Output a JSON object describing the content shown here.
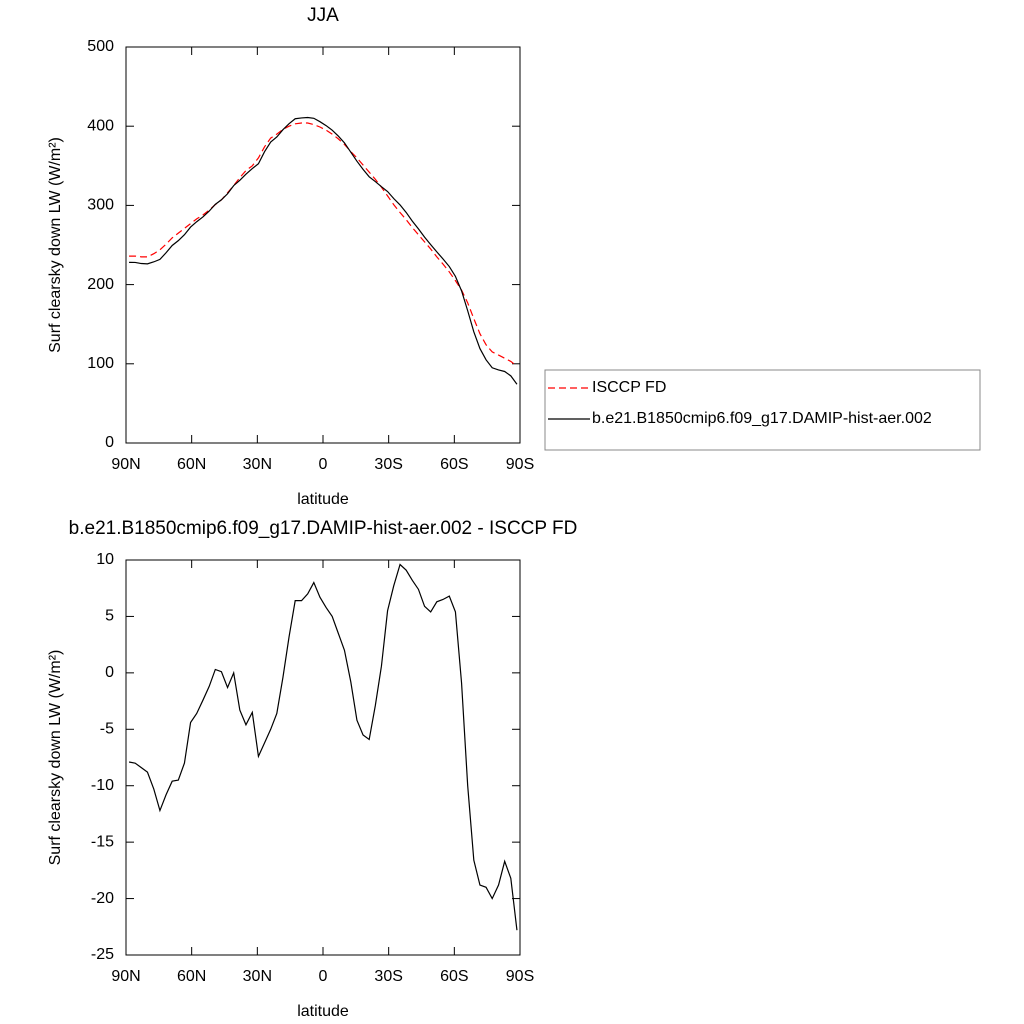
{
  "chart_data": [
    {
      "type": "line",
      "title": "JJA",
      "xlabel": "latitude",
      "ylabel": "Surf clearsky down LW (W/m²)",
      "x": [
        88.6,
        85.8,
        83.0,
        80.2,
        77.3,
        74.5,
        71.7,
        68.9,
        66.1,
        63.3,
        60.5,
        57.7,
        54.8,
        52.0,
        49.2,
        46.4,
        43.6,
        40.8,
        38.0,
        35.2,
        32.3,
        29.5,
        26.7,
        23.9,
        21.1,
        18.3,
        15.5,
        12.7,
        9.8,
        7.0,
        4.2,
        1.4,
        -1.4,
        -4.2,
        -7.0,
        -9.8,
        -12.7,
        -15.5,
        -18.3,
        -21.1,
        -23.9,
        -26.7,
        -29.5,
        -32.3,
        -35.2,
        -38.0,
        -40.8,
        -43.6,
        -46.4,
        -49.2,
        -52.0,
        -54.8,
        -57.7,
        -60.5,
        -63.3,
        -66.1,
        -68.9,
        -71.7,
        -74.5,
        -77.3,
        -80.2,
        -83.0,
        -85.8,
        -88.6
      ],
      "series": [
        {
          "name": "ISCCP FD",
          "color": "#ff0000",
          "linestyle": "dashed",
          "values": [
            236,
            236,
            235,
            235,
            239,
            244,
            251,
            259,
            265,
            271,
            277,
            283,
            288,
            294,
            301,
            307,
            316,
            325,
            335,
            344,
            350,
            360,
            374,
            385,
            390,
            396,
            400,
            403,
            404,
            404,
            402,
            399,
            395,
            390,
            384,
            377,
            368,
            360,
            351,
            342,
            333,
            323,
            312,
            301,
            291,
            282,
            272,
            263,
            254,
            245,
            235,
            226,
            216,
            205,
            193,
            177,
            157,
            138,
            124,
            115,
            111,
            107,
            103,
            97
          ]
        },
        {
          "name": "b.e21.B1850cmip6.f09_g17.DAMIP-hist-aer.002",
          "color": "#000000",
          "linestyle": "solid",
          "values": [
            228.1,
            228.0,
            226.6,
            226.2,
            228.7,
            231.8,
            240.2,
            249.4,
            255.5,
            263.0,
            272.6,
            279.4,
            285.6,
            292.8,
            301.3,
            307.1,
            314.7,
            325.0,
            331.7,
            339.4,
            346.5,
            352.6,
            367.8,
            380.0,
            386.4,
            395.6,
            403.2,
            409.4,
            410.4,
            411.0,
            410.0,
            405.7,
            400.8,
            395.0,
            387.5,
            379.0,
            367.2,
            355.8,
            345.5,
            336.1,
            330.1,
            323.6,
            317.5,
            308.7,
            300.6,
            291.1,
            280.2,
            270.4,
            259.9,
            250.4,
            241.3,
            232.5,
            222.8,
            210.4,
            192.1,
            167.0,
            140.4,
            119.2,
            105.0,
            95.0,
            92.2,
            90.3,
            84.8,
            74.2
          ]
        }
      ],
      "xlim": [
        90,
        -90
      ],
      "xticks": [
        {
          "value": 90,
          "label": "90N"
        },
        {
          "value": 60,
          "label": "60N"
        },
        {
          "value": 30,
          "label": "30N"
        },
        0,
        {
          "value": -30,
          "label": "30S"
        },
        {
          "value": -60,
          "label": "60S"
        },
        {
          "value": -90,
          "label": "90S"
        }
      ],
      "ylim": [
        0,
        500
      ],
      "yticks": [
        0,
        100,
        200,
        300,
        400,
        500
      ],
      "legend": "outside right"
    },
    {
      "type": "line",
      "title": "b.e21.B1850cmip6.f09_g17.DAMIP-hist-aer.002 - ISCCP FD",
      "xlabel": "latitude",
      "ylabel": "Surf clearsky down LW (W/m²)",
      "x": [
        88.6,
        85.8,
        83.0,
        80.2,
        77.3,
        74.5,
        71.7,
        68.9,
        66.1,
        63.3,
        60.5,
        57.7,
        54.8,
        52.0,
        49.2,
        46.4,
        43.6,
        40.8,
        38.0,
        35.2,
        32.3,
        29.5,
        26.7,
        23.9,
        21.1,
        18.3,
        15.5,
        12.7,
        9.8,
        7.0,
        4.2,
        1.4,
        -1.4,
        -4.2,
        -7.0,
        -9.8,
        -12.7,
        -15.5,
        -18.3,
        -21.1,
        -23.9,
        -26.7,
        -29.5,
        -32.3,
        -35.2,
        -38.0,
        -40.8,
        -43.6,
        -46.4,
        -49.2,
        -52.0,
        -54.8,
        -57.7,
        -60.5,
        -63.3,
        -66.1,
        -68.9,
        -71.7,
        -74.5,
        -77.3,
        -80.2,
        -83.0,
        -85.8,
        -88.6
      ],
      "values": [
        -7.9,
        -8.0,
        -8.4,
        -8.8,
        -10.3,
        -12.2,
        -10.8,
        -9.6,
        -9.5,
        -8.0,
        -4.4,
        -3.6,
        -2.4,
        -1.2,
        0.3,
        0.1,
        -1.3,
        0.0,
        -3.3,
        -4.6,
        -3.5,
        -7.4,
        -6.2,
        -5.0,
        -3.6,
        -0.4,
        3.2,
        6.4,
        6.4,
        7.0,
        8.0,
        6.7,
        5.8,
        5.0,
        3.5,
        2.0,
        -0.8,
        -4.2,
        -5.5,
        -5.9,
        -2.9,
        0.6,
        5.5,
        7.7,
        9.6,
        9.1,
        8.2,
        7.4,
        5.9,
        5.4,
        6.3,
        6.5,
        6.8,
        5.4,
        -0.9,
        -10.0,
        -16.6,
        -18.8,
        -19.0,
        -20.0,
        -18.8,
        -16.7,
        -18.2,
        -22.8
      ],
      "color": "#000000",
      "xlim": [
        90,
        -90
      ],
      "xticks": [
        {
          "value": 90,
          "label": "90N"
        },
        {
          "value": 60,
          "label": "60N"
        },
        {
          "value": 30,
          "label": "30N"
        },
        0,
        {
          "value": -30,
          "label": "30S"
        },
        {
          "value": -60,
          "label": "60S"
        },
        {
          "value": -90,
          "label": "90S"
        }
      ],
      "ylim": [
        -25,
        10
      ],
      "yticks": [
        -25,
        -20,
        -15,
        -10,
        -5,
        0,
        5,
        10
      ]
    }
  ]
}
